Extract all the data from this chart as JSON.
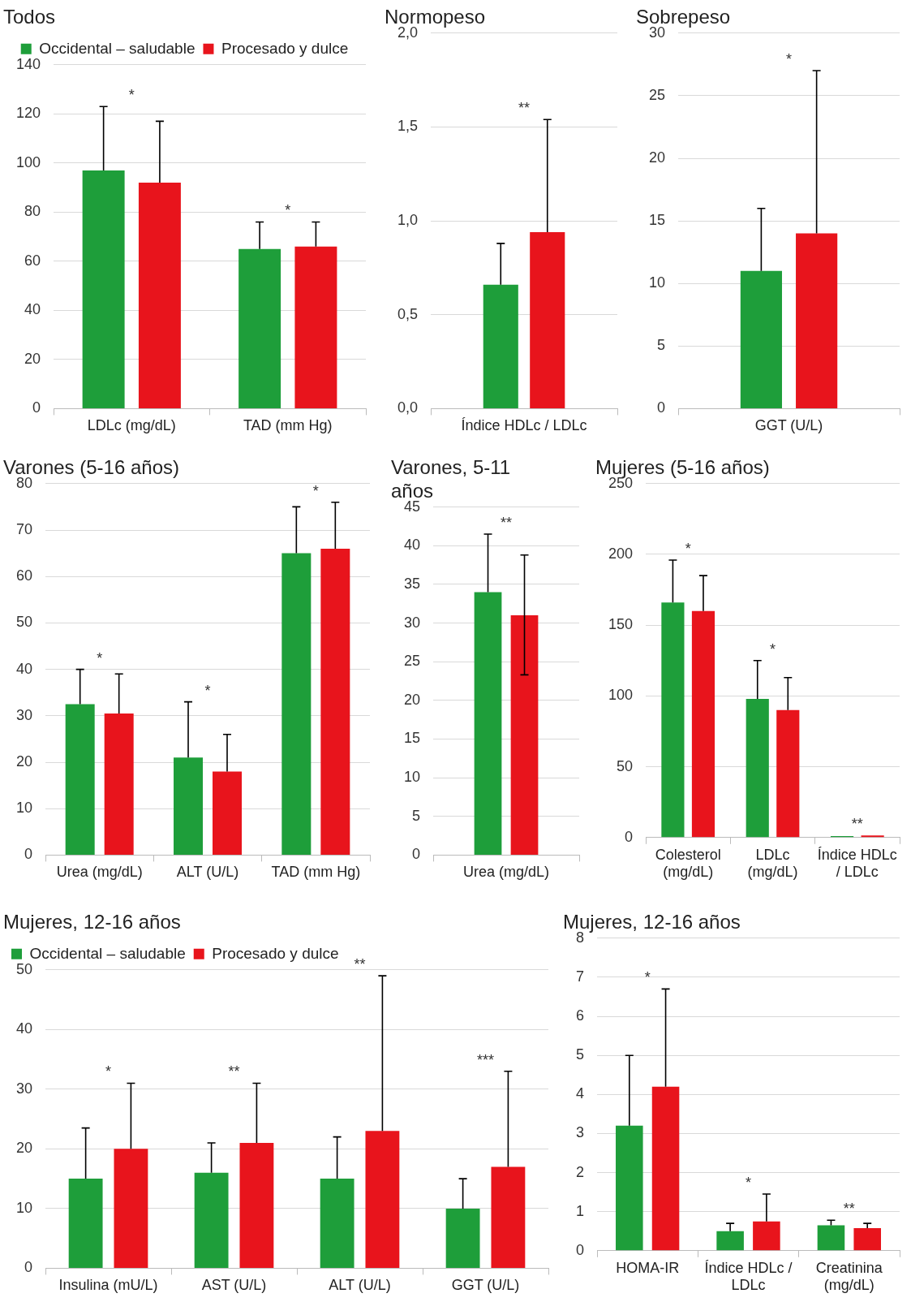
{
  "chart_data": [
    {
      "type": "bar",
      "title": "Todos",
      "categories": [
        "LDLc (mg/dL)",
        "TAD (mm Hg)"
      ],
      "legend": "top",
      "grid": "y",
      "ylim": [
        0,
        140
      ],
      "yticks": [
        0,
        20,
        40,
        60,
        80,
        100,
        120,
        140
      ],
      "series": [
        {
          "name": "Occidental – saludable",
          "color": "#1e9e3a",
          "values": [
            97,
            65
          ],
          "errors": [
            [
              97,
              123
            ],
            [
              65,
              76
            ]
          ]
        },
        {
          "name": "Procesado y dulce",
          "color": "#e8141c",
          "values": [
            92,
            66
          ],
          "errors": [
            [
              92,
              117
            ],
            [
              66,
              76
            ]
          ]
        }
      ],
      "annotations": [
        "*",
        "*"
      ]
    },
    {
      "type": "bar",
      "title": "Normopeso",
      "categories": [
        "Índice HDLc / LDLc"
      ],
      "grid": "y",
      "ylim": [
        0,
        2
      ],
      "yticks": [
        {
          "value": 0,
          "label": "0,0"
        },
        {
          "value": 0.5,
          "label": "0,5"
        },
        {
          "value": 1,
          "label": "1,0"
        },
        {
          "value": 1.5,
          "label": "1,5"
        },
        {
          "value": 2,
          "label": "2,0"
        }
      ],
      "series": [
        {
          "color": "#1e9e3a",
          "values": [
            0.66
          ],
          "errors": [
            [
              0.66,
              0.88
            ]
          ]
        },
        {
          "color": "#e8141c",
          "values": [
            0.94
          ],
          "errors": [
            [
              0.94,
              1.54
            ]
          ]
        }
      ],
      "annotations": [
        "**"
      ]
    },
    {
      "type": "bar",
      "title": "Sobrepeso",
      "categories": [
        "GGT (U/L)"
      ],
      "grid": "y",
      "ylim": [
        0,
        30
      ],
      "yticks": [
        0,
        5,
        10,
        15,
        20,
        25,
        30
      ],
      "series": [
        {
          "color": "#1e9e3a",
          "values": [
            11
          ],
          "errors": [
            [
              11,
              16
            ]
          ]
        },
        {
          "color": "#e8141c",
          "values": [
            14
          ],
          "errors": [
            [
              14,
              27
            ]
          ]
        }
      ],
      "annotations": [
        "*"
      ]
    },
    {
      "type": "bar",
      "title": "Varones (5-16 años)",
      "categories": [
        "Urea (mg/dL)",
        "ALT (U/L)",
        "TAD (mm Hg)"
      ],
      "grid": "y",
      "ylim": [
        0,
        80
      ],
      "yticks": [
        0,
        10,
        20,
        30,
        40,
        50,
        60,
        70,
        80
      ],
      "series": [
        {
          "color": "#1e9e3a",
          "values": [
            32.5,
            21,
            65
          ],
          "errors": [
            [
              32.5,
              40
            ],
            [
              21,
              33
            ],
            [
              65,
              75
            ]
          ]
        },
        {
          "color": "#e8141c",
          "values": [
            30.5,
            18,
            66
          ],
          "errors": [
            [
              30.5,
              39
            ],
            [
              18,
              26
            ],
            [
              66,
              76
            ]
          ]
        }
      ],
      "annotations": [
        "*",
        "*",
        "*"
      ]
    },
    {
      "type": "bar",
      "title": "Varones, 5-11 años",
      "categories": [
        "Urea (mg/dL)"
      ],
      "grid": "y",
      "ylim": [
        0,
        45
      ],
      "yticks": [
        0,
        5,
        10,
        15,
        20,
        25,
        30,
        35,
        40,
        45
      ],
      "series": [
        {
          "color": "#1e9e3a",
          "values": [
            34
          ],
          "errors": [
            [
              34,
              41.5
            ]
          ]
        },
        {
          "color": "#e8141c",
          "values": [
            31
          ],
          "errors": [
            [
              23.3,
              38.8
            ]
          ]
        }
      ],
      "annotations": [
        "**"
      ]
    },
    {
      "type": "bar",
      "title": "Mujeres (5-16 años)",
      "categories": [
        "Colesterol (mg/dL)",
        "LDLc (mg/dL)",
        "Índice HDLc / LDLc"
      ],
      "grid": "y",
      "ylim": [
        0,
        250
      ],
      "yticks": [
        0,
        50,
        100,
        150,
        200,
        250
      ],
      "series": [
        {
          "color": "#1e9e3a",
          "values": [
            166,
            98,
            1
          ],
          "errors": [
            [
              166,
              196
            ],
            [
              98,
              125
            ],
            null
          ]
        },
        {
          "color": "#e8141c",
          "values": [
            160,
            90,
            1.5
          ],
          "errors": [
            [
              160,
              185
            ],
            [
              90,
              113
            ],
            null
          ]
        }
      ],
      "annotations": [
        "*",
        "*",
        "**"
      ]
    },
    {
      "type": "bar",
      "title": "Mujeres, 12-16 años",
      "categories": [
        "Insulina (mU/L)",
        "AST (U/L)",
        "ALT (U/L)",
        "GGT (U/L)"
      ],
      "legend": "top left",
      "grid": "y",
      "ylim": [
        0,
        50
      ],
      "yticks": [
        0,
        10,
        20,
        30,
        40,
        50
      ],
      "series": [
        {
          "name": "Occidental – saludable",
          "color": "#1e9e3a",
          "values": [
            15,
            16,
            15,
            10
          ],
          "errors": [
            [
              15,
              23.5
            ],
            [
              16,
              21
            ],
            [
              15,
              22
            ],
            [
              10,
              15
            ]
          ]
        },
        {
          "name": "Procesado y dulce",
          "color": "#e8141c",
          "values": [
            20,
            21,
            23,
            17
          ],
          "errors": [
            [
              20,
              31
            ],
            [
              21,
              31
            ],
            [
              23,
              49
            ],
            [
              17,
              33
            ]
          ]
        }
      ],
      "annotations": [
        "*",
        "**",
        "**",
        "***"
      ]
    },
    {
      "type": "bar",
      "title": "Mujeres, 12-16 años",
      "categories": [
        "HOMA-IR",
        "Índice HDLc / LDLc",
        "Creatinina (mg/dL)"
      ],
      "grid": "y",
      "ylim": [
        0,
        8
      ],
      "yticks": [
        0,
        1,
        2,
        3,
        4,
        5,
        6,
        7,
        8
      ],
      "series": [
        {
          "color": "#1e9e3a",
          "values": [
            3.2,
            0.5,
            0.65
          ],
          "errors": [
            [
              3.2,
              5
            ],
            [
              0.5,
              0.7
            ],
            [
              0.65,
              0.78
            ]
          ]
        },
        {
          "color": "#e8141c",
          "values": [
            4.2,
            0.75,
            0.58
          ],
          "errors": [
            [
              4.2,
              6.7
            ],
            [
              0.75,
              1.45
            ],
            [
              0.58,
              0.7
            ]
          ]
        }
      ],
      "annotations": [
        "*",
        "*",
        "**"
      ]
    }
  ]
}
